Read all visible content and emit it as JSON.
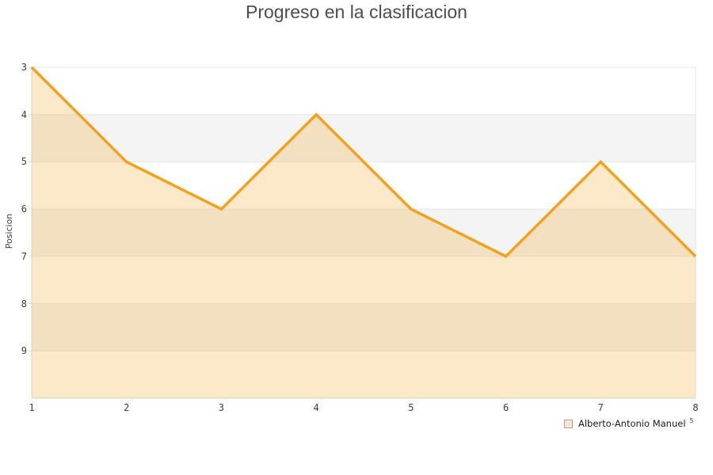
{
  "chart": {
    "title": "Progreso en la clasificacion",
    "y_axis_label": "Posicion",
    "legend": {
      "label": "Alberto-Antonio Manuel",
      "stray_text": "5"
    },
    "colors": {
      "line": "#F2A21D",
      "fill": "rgba(244,164,30,0.24)",
      "band": "#ffffff",
      "band_alt": "#f4f4f4",
      "grid": "#e6e6e6",
      "axis": "#d8d8d8",
      "right_border": "#e3e3e3",
      "title_text": "#4d4d4d",
      "tick_text": "#3c3c3c",
      "legend_swatch_fill": "#fbe8c8",
      "legend_swatch_border": "#a6a6a6"
    }
  },
  "chart_data": {
    "type": "area",
    "title": "Progreso en la clasificacion",
    "xlabel": "",
    "ylabel": "Posicion",
    "x": [
      1,
      2,
      3,
      4,
      5,
      6,
      7,
      8
    ],
    "series": [
      {
        "name": "Alberto-Antonio Manuel",
        "values": [
          3,
          5,
          6,
          4,
          6,
          7,
          5,
          7
        ]
      }
    ],
    "x_ticks": [
      1,
      2,
      3,
      4,
      5,
      6,
      7,
      8
    ],
    "y_ticks": [
      3,
      4,
      5,
      6,
      7,
      8,
      9
    ],
    "ylim": [
      3,
      10
    ],
    "y_axis_inverted": true,
    "grid": true,
    "banded_background": true,
    "legend_position": "bottom-right"
  }
}
